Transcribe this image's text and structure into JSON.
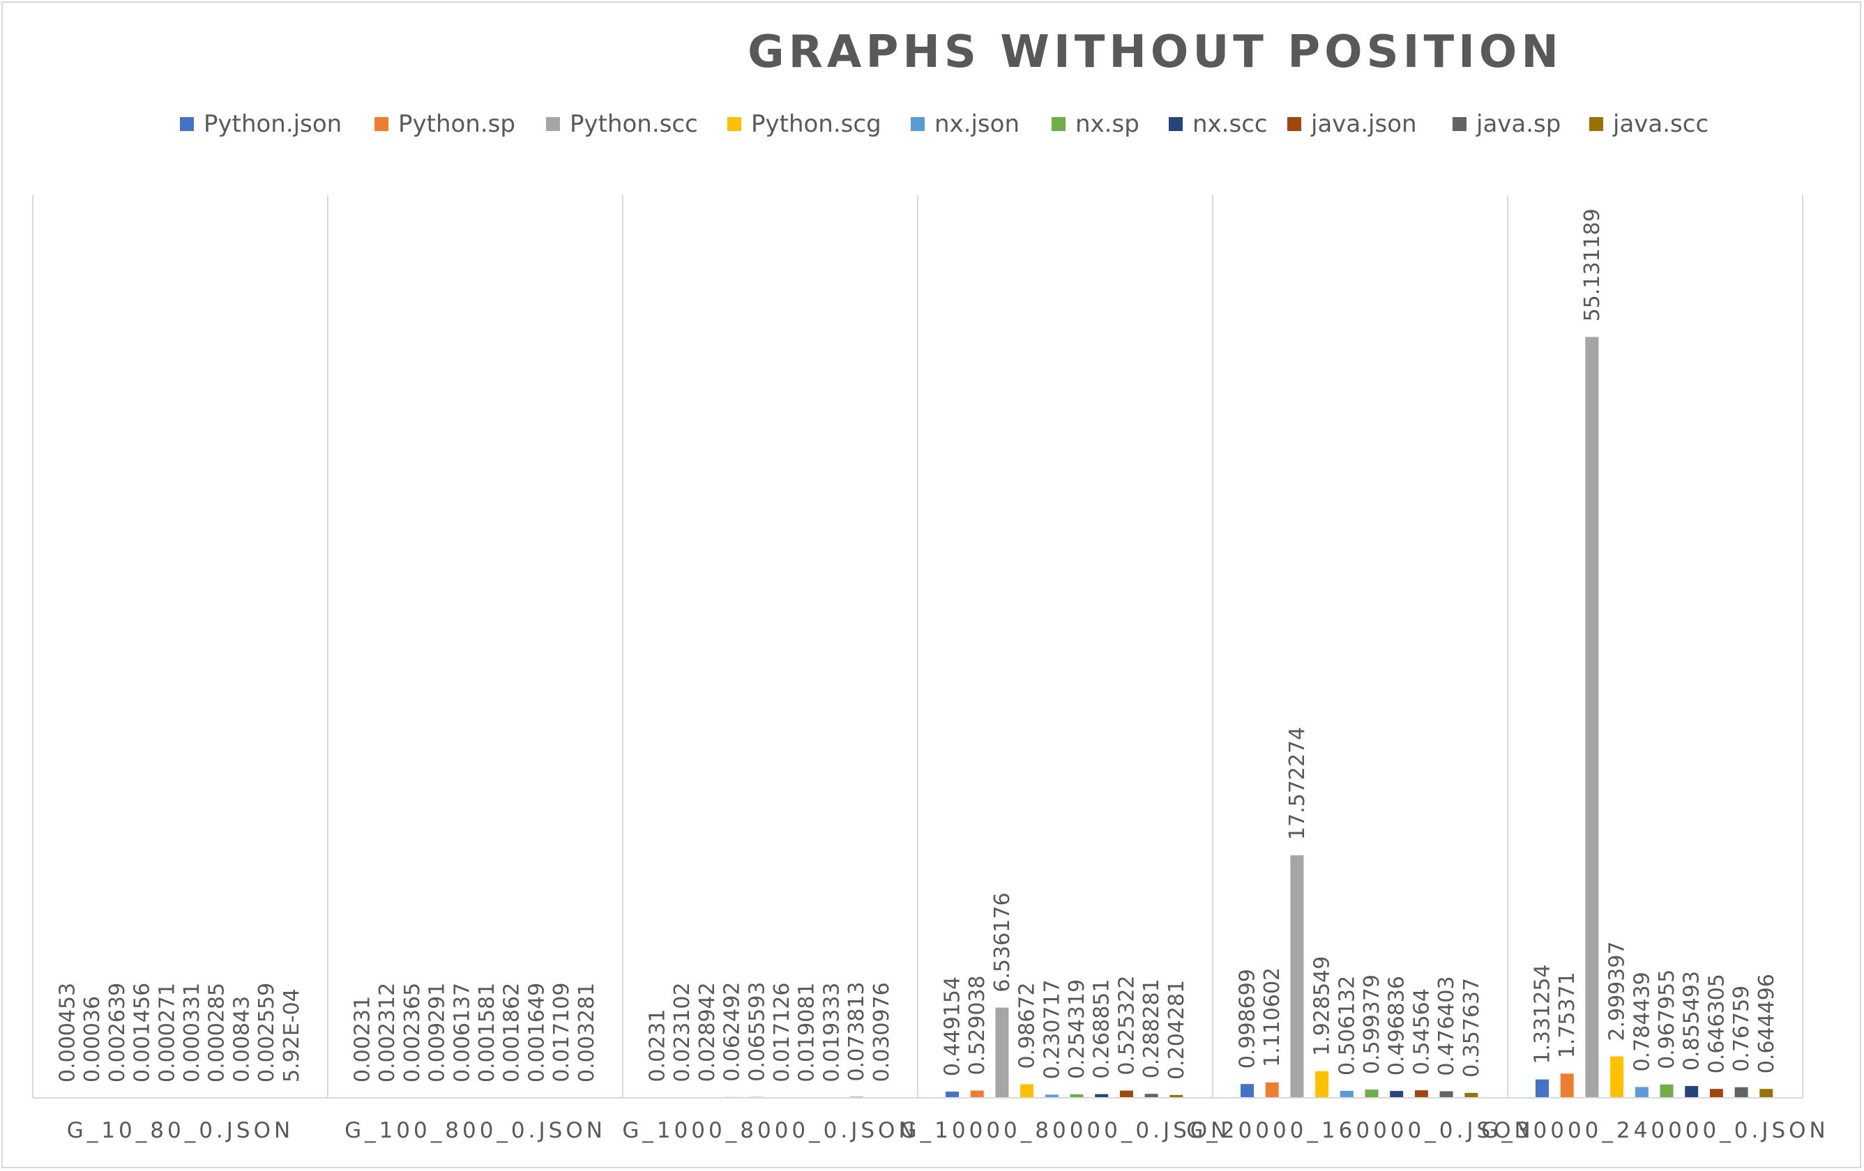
{
  "chart_data": {
    "type": "bar",
    "title": "GRAPHS WITHOUT POSITION",
    "xlabel": "",
    "ylabel": "",
    "ylim": [
      0,
      60
    ],
    "grid": false,
    "legend_position": "top",
    "categories": [
      "G_10_80_0.JSON",
      "G_100_800_0.JSON",
      "G_1000_8000_0.JSON",
      "G_10000_80000_0.JSON",
      "G_20000_160000_0.JSON",
      "G_30000_240000_0.JSON"
    ],
    "series": [
      {
        "name": "Python.json",
        "color": "#4472C4",
        "values": [
          0.000453,
          0.00231,
          0.0231,
          0.449154,
          0.998699,
          1.331254
        ],
        "labels": [
          "0.000453",
          "0.00231",
          "0.0231",
          "0.449154",
          "0.998699",
          "1.331254"
        ]
      },
      {
        "name": "Python.sp",
        "color": "#ED7D31",
        "values": [
          0.00036,
          0.002312,
          0.023102,
          0.529038,
          1.110602,
          1.75371
        ],
        "labels": [
          "0.00036",
          "0.002312",
          "0.023102",
          "0.529038",
          "1.110602",
          "1.75371"
        ]
      },
      {
        "name": "Python.scc",
        "color": "#A5A5A5",
        "values": [
          0.002639,
          0.002365,
          0.028942,
          6.536176,
          17.572274,
          55.131189
        ],
        "labels": [
          "0.002639",
          "0.002365",
          "0.028942",
          "6.536176",
          "17.572274",
          "55.131189"
        ]
      },
      {
        "name": "Python.scg",
        "color": "#FFC000",
        "values": [
          0.001456,
          0.009291,
          0.062492,
          0.98672,
          1.928549,
          2.999397
        ],
        "labels": [
          "0.001456",
          "0.009291",
          "0.062492",
          "0.98672",
          "1.928549",
          "2.999397"
        ]
      },
      {
        "name": "nx.json",
        "color": "#5B9BD5",
        "values": [
          0.000271,
          0.006137,
          0.065593,
          0.230717,
          0.506132,
          0.784439
        ],
        "labels": [
          "0.000271",
          "0.006137",
          "0.065593",
          "0.230717",
          "0.506132",
          "0.784439"
        ]
      },
      {
        "name": "nx.sp",
        "color": "#70AD47",
        "values": [
          0.000331,
          0.001581,
          0.017126,
          0.254319,
          0.599379,
          0.967955
        ],
        "labels": [
          "0.000331",
          "0.001581",
          "0.017126",
          "0.254319",
          "0.599379",
          "0.967955"
        ]
      },
      {
        "name": "nx.scc",
        "color": "#264478",
        "values": [
          0.000285,
          0.001862,
          0.019081,
          0.268851,
          0.496836,
          0.855493
        ],
        "labels": [
          "0.000285",
          "0.001862",
          "0.019081",
          "0.268851",
          "0.496836",
          "0.855493"
        ]
      },
      {
        "name": "java.json",
        "color": "#9E480E",
        "values": [
          0.00843,
          0.001649,
          0.019333,
          0.525322,
          0.54564,
          0.646305
        ],
        "labels": [
          "0.00843",
          "0.001649",
          "0.019333",
          "0.525322",
          "0.54564",
          "0.646305"
        ]
      },
      {
        "name": "java.sp",
        "color": "#636363",
        "values": [
          0.002559,
          0.017109,
          0.073813,
          0.288281,
          0.476403,
          0.76759
        ],
        "labels": [
          "0.002559",
          "0.017109",
          "0.073813",
          "0.288281",
          "0.476403",
          "0.76759"
        ]
      },
      {
        "name": "java.scc",
        "color": "#997300",
        "values": [
          0.000592,
          0.003281,
          0.030976,
          0.204281,
          0.357637,
          0.644496
        ],
        "labels": [
          "5.92E-04",
          "0.003281",
          "0.030976",
          "0.204281",
          "0.357637",
          "0.644496"
        ]
      }
    ]
  }
}
